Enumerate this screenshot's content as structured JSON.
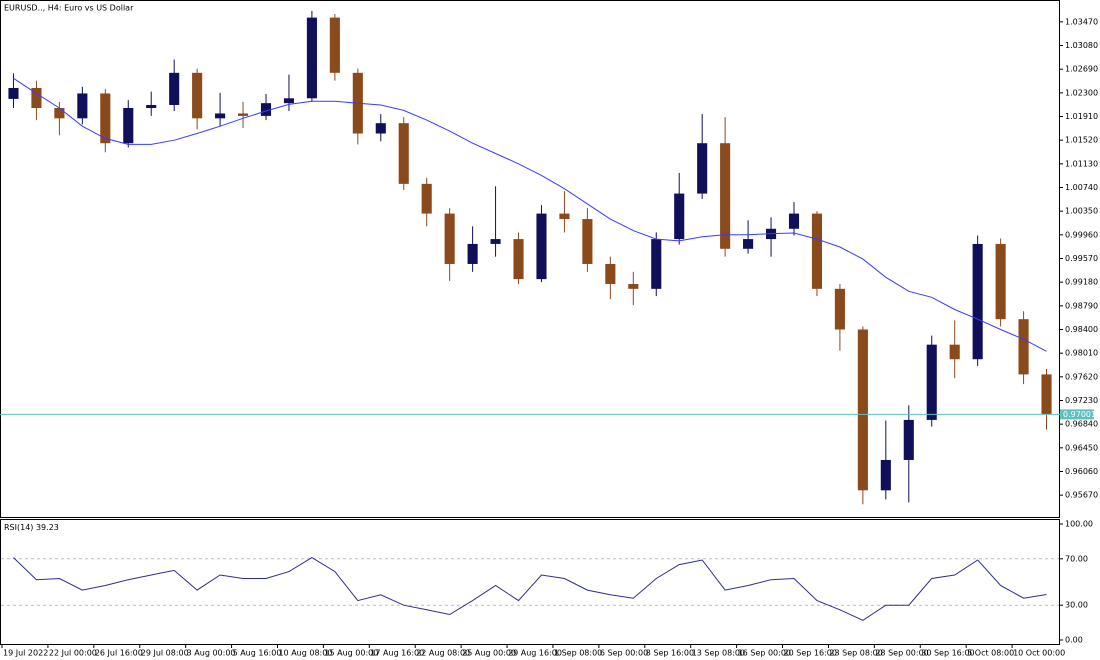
{
  "chart_data": [
    {
      "type": "candlestick",
      "title": "EURUSD.., H4:  Euro vs US Dollar",
      "categories": [
        "19 Jul 2022",
        null,
        "22 Jul 00:00",
        null,
        "26 Jul 16:00",
        null,
        "29 Jul 08:00",
        null,
        "3 Aug 00:00",
        null,
        "5 Aug 16:00",
        null,
        "10 Aug 08:00",
        null,
        "15 Aug 00:00",
        null,
        "17 Aug 16:00",
        null,
        "22 Aug 08:00",
        null,
        "25 Aug 00:00",
        null,
        "29 Aug 16:00",
        null,
        "1 Sep 08:00",
        null,
        "6 Sep 00:00",
        null,
        "8 Sep 16:00",
        null,
        "13 Sep 08:00",
        null,
        "16 Sep 00:00",
        null,
        "20 Sep 16:00",
        null,
        "23 Sep 08:00",
        null,
        "28 Sep 00:00",
        null,
        "30 Sep 16:00",
        null,
        "5 Oct 08:00",
        null,
        "10 Oct 00:00",
        null
      ],
      "open": [
        1.022,
        1.0238,
        1.0205,
        1.0188,
        1.0229,
        1.0147,
        1.0205,
        1.021,
        1.0263,
        1.0188,
        1.0196,
        1.0192,
        1.0213,
        1.0221,
        1.0354,
        1.0263,
        1.0163,
        1.018,
        1.008,
        1.0031,
        0.9948,
        0.9981,
        0.9989,
        0.9923,
        1.0031,
        1.0022,
        0.9948,
        0.9915,
        0.9907,
        0.9989,
        1.0064,
        1.0147,
        0.9973,
        0.9989,
        1.0006,
        1.0031,
        0.9907,
        0.984,
        0.9575,
        0.9625,
        0.9691,
        0.9815,
        0.9791,
        0.9981,
        0.9857,
        0.9766
      ],
      "high": [
        1.0262,
        1.025,
        1.0215,
        1.024,
        1.0236,
        1.0218,
        1.0232,
        1.0285,
        1.027,
        1.023,
        1.0215,
        1.0228,
        1.026,
        1.0365,
        1.036,
        1.027,
        1.0195,
        1.019,
        1.009,
        1.004,
        1.001,
        1.0076,
        1.0,
        1.0045,
        1.0068,
        1.004,
        0.996,
        0.9935,
        1.0,
        1.0098,
        1.0195,
        1.019,
        1.002,
        1.0025,
        1.005,
        1.0035,
        0.9915,
        0.9845,
        0.969,
        0.9715,
        0.983,
        0.9855,
        0.9995,
        0.999,
        0.987,
        0.9775
      ],
      "low": [
        1.0205,
        1.0185,
        1.016,
        1.0178,
        1.0132,
        1.014,
        1.0192,
        1.02,
        1.017,
        1.0175,
        1.0172,
        1.0185,
        1.02,
        1.0215,
        1.025,
        1.0145,
        1.015,
        1.007,
        1.001,
        0.992,
        0.9935,
        0.996,
        0.9915,
        0.9918,
        1.0,
        0.9935,
        0.989,
        0.988,
        0.9895,
        0.998,
        1.0055,
        0.996,
        0.9965,
        0.996,
        0.9995,
        0.9895,
        0.9805,
        0.9552,
        0.956,
        0.9555,
        0.968,
        0.976,
        0.978,
        0.9845,
        0.975,
        0.9675
      ],
      "close": [
        1.0238,
        1.0205,
        1.0188,
        1.0229,
        1.0147,
        1.0205,
        1.021,
        1.0263,
        1.0188,
        1.0196,
        1.0192,
        1.0213,
        1.0221,
        1.0354,
        1.0263,
        1.0163,
        1.018,
        1.008,
        1.0031,
        0.9948,
        0.9981,
        0.9989,
        0.9923,
        1.0031,
        1.0022,
        0.9948,
        0.9915,
        0.9907,
        0.9989,
        1.0064,
        1.0147,
        0.9973,
        0.9989,
        1.0006,
        1.0031,
        0.9907,
        0.984,
        0.9575,
        0.9625,
        0.9691,
        0.9815,
        0.9791,
        0.9981,
        0.9857,
        0.9766,
        0.97
      ],
      "up_color": "#10105a",
      "down_color": "#8b4a1c",
      "overlay": {
        "type": "line",
        "color": "#3a3aff",
        "values": [
          1.0254,
          1.0229,
          1.0205,
          1.0175,
          1.0155,
          1.0145,
          1.0145,
          1.0152,
          1.0163,
          1.0175,
          1.0188,
          1.02,
          1.0211,
          1.0216,
          1.0216,
          1.0213,
          1.021,
          1.0201,
          1.0185,
          1.0167,
          1.0147,
          1.013,
          1.0113,
          1.0094,
          1.0072,
          1.0047,
          1.0022,
          1.0003,
          0.9989,
          0.9986,
          0.9993,
          0.9996,
          0.9996,
          0.9998,
          0.9999,
          0.9989,
          0.9976,
          0.9956,
          0.9926,
          0.9903,
          0.9893,
          0.9873,
          0.9857,
          0.984,
          0.9824,
          0.9804
        ]
      },
      "price_line": {
        "value": 0.97001,
        "color": "#5fbfbf"
      },
      "ylim": [
        0.9531,
        1.0383
      ],
      "yticks": [
        {
          "value": 1.0347,
          "label": "1.03470"
        },
        {
          "value": 1.0308,
          "label": "1.03080"
        },
        {
          "value": 1.0269,
          "label": "1.02690"
        },
        {
          "value": 1.023,
          "label": "1.02300"
        },
        {
          "value": 1.0191,
          "label": "1.01910"
        },
        {
          "value": 1.0152,
          "label": "1.01520"
        },
        {
          "value": 1.0113,
          "label": "1.01130"
        },
        {
          "value": 1.0074,
          "label": "1.00740"
        },
        {
          "value": 1.0035,
          "label": "1.00350"
        },
        {
          "value": 0.9996,
          "label": "0.99960"
        },
        {
          "value": 0.9957,
          "label": "0.99570"
        },
        {
          "value": 0.9918,
          "label": "0.99180"
        },
        {
          "value": 0.9879,
          "label": "0.98790"
        },
        {
          "value": 0.984,
          "label": "0.98400"
        },
        {
          "value": 0.9801,
          "label": "0.98010"
        },
        {
          "value": 0.9762,
          "label": "0.97620"
        },
        {
          "value": 0.9723,
          "label": "0.97230"
        },
        {
          "value": 0.9684,
          "label": "0.96840"
        },
        {
          "value": 0.9645,
          "label": "0.96450"
        },
        {
          "value": 0.9606,
          "label": "0.96060"
        },
        {
          "value": 0.9567,
          "label": "0.95670"
        }
      ]
    },
    {
      "type": "line",
      "title": "RSI(14)",
      "color": "#2e2e8a",
      "values": [
        71,
        52,
        53,
        43,
        47,
        52,
        56,
        60,
        43,
        56,
        53,
        53,
        59,
        71,
        59,
        34,
        39,
        30,
        26,
        22,
        34,
        47,
        34,
        56,
        53,
        43,
        39,
        36,
        53,
        65,
        69,
        43,
        47,
        52,
        53,
        34,
        26,
        17,
        30,
        30,
        53,
        56,
        69,
        47,
        36,
        39.23
      ],
      "ylim": [
        0,
        100
      ],
      "yticks": [
        {
          "value": 100,
          "label": "100.00"
        },
        {
          "value": 70,
          "label": "70.00"
        },
        {
          "value": 30,
          "label": "30.00"
        },
        {
          "value": 0,
          "label": "0.00"
        }
      ]
    }
  ]
}
